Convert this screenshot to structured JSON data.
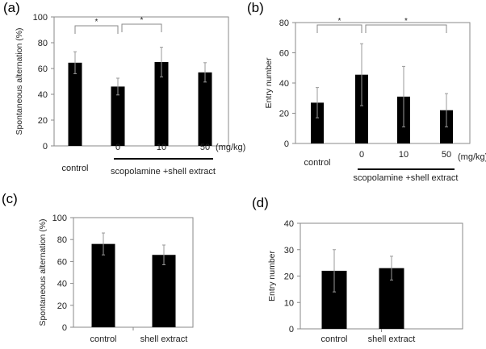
{
  "chart_data": [
    {
      "type": "bar",
      "panel_label": "(a)",
      "ylabel": "Spontaneous alternation (%)",
      "ylim": [
        0,
        100
      ],
      "yticks": [
        0,
        20,
        40,
        60,
        80,
        100
      ],
      "categories": [
        "control",
        "0",
        "10",
        "50"
      ],
      "unit_label": "(mg/kg)",
      "group_label": "scopolamine +shell extract",
      "values": [
        64.5,
        46,
        65,
        57
      ],
      "errors": [
        8.5,
        6.5,
        11.5,
        7.5
      ],
      "significance": [
        {
          "from": "control",
          "to": "0",
          "label": "*"
        },
        {
          "from": "0",
          "to": "10",
          "label": "*"
        }
      ],
      "bar_color": "#000000"
    },
    {
      "type": "bar",
      "panel_label": "(b)",
      "ylabel": "Entry number",
      "ylim": [
        0,
        80
      ],
      "yticks": [
        0,
        20,
        40,
        60,
        80
      ],
      "categories": [
        "control",
        "0",
        "10",
        "50"
      ],
      "unit_label": "(mg/kg)",
      "group_label": "scopolamine +shell extract",
      "values": [
        27,
        45.5,
        31,
        22
      ],
      "errors": [
        10,
        20.5,
        20,
        11
      ],
      "significance": [
        {
          "from": "control",
          "to": "0",
          "label": "*"
        },
        {
          "from": "0",
          "to": "50",
          "label": "*"
        }
      ],
      "bar_color": "#000000"
    },
    {
      "type": "bar",
      "panel_label": "(c)",
      "ylabel": "Spontaneous alternation (%)",
      "ylim": [
        0,
        100
      ],
      "yticks": [
        0,
        20,
        40,
        60,
        80,
        100
      ],
      "categories": [
        "control",
        "shell extract"
      ],
      "values": [
        76,
        66
      ],
      "errors": [
        10,
        9
      ],
      "bar_color": "#000000"
    },
    {
      "type": "bar",
      "panel_label": "(d)",
      "ylabel": "Entry number",
      "ylim": [
        0,
        40
      ],
      "yticks": [
        0,
        10,
        20,
        30,
        40
      ],
      "categories": [
        "control",
        "shell extract"
      ],
      "values": [
        22,
        23
      ],
      "errors": [
        8,
        4.5
      ],
      "bar_color": "#000000"
    }
  ]
}
